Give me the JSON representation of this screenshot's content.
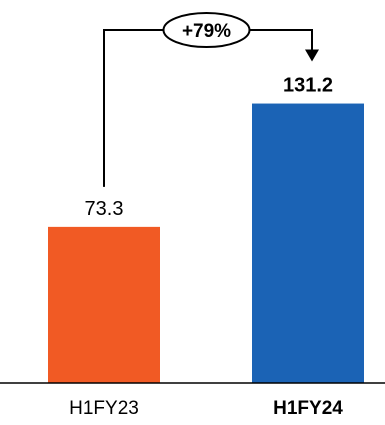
{
  "chart_data": {
    "type": "bar",
    "categories": [
      "H1FY23",
      "H1FY24"
    ],
    "values": [
      73.3,
      131.2
    ],
    "value_labels": [
      "73.3",
      "131.2"
    ],
    "emphasized": [
      false,
      true
    ],
    "growth_label": "+79%",
    "ylim": [
      0,
      160
    ],
    "grid": false,
    "colors": {
      "H1FY23": "#f15a24",
      "H1FY24": "#1b63b5",
      "axis": "#000000",
      "connector": "#000000"
    }
  }
}
